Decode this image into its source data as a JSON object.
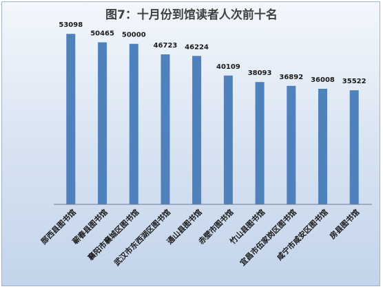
{
  "chart_data": {
    "type": "bar",
    "title": "图7：十月份到馆读者人次前十名",
    "categories": [
      "郧西县图书馆",
      "蕲春县图书馆",
      "襄阳市襄城区图书馆",
      "武汉市东西湖区图书馆",
      "通山县图书馆",
      "赤壁市图书馆",
      "竹山县图书馆",
      "宜昌市伍家岗区图书馆",
      "咸宁市咸安区图书馆",
      "房县图书馆"
    ],
    "values": [
      53098,
      50465,
      50000,
      46723,
      46224,
      40109,
      38093,
      36892,
      36008,
      35522
    ],
    "ylim": [
      0,
      60000
    ],
    "xlabel": "",
    "ylabel": "",
    "grid": false,
    "bar_color": "#4f81bd",
    "axis_color": "#6b7d94"
  }
}
